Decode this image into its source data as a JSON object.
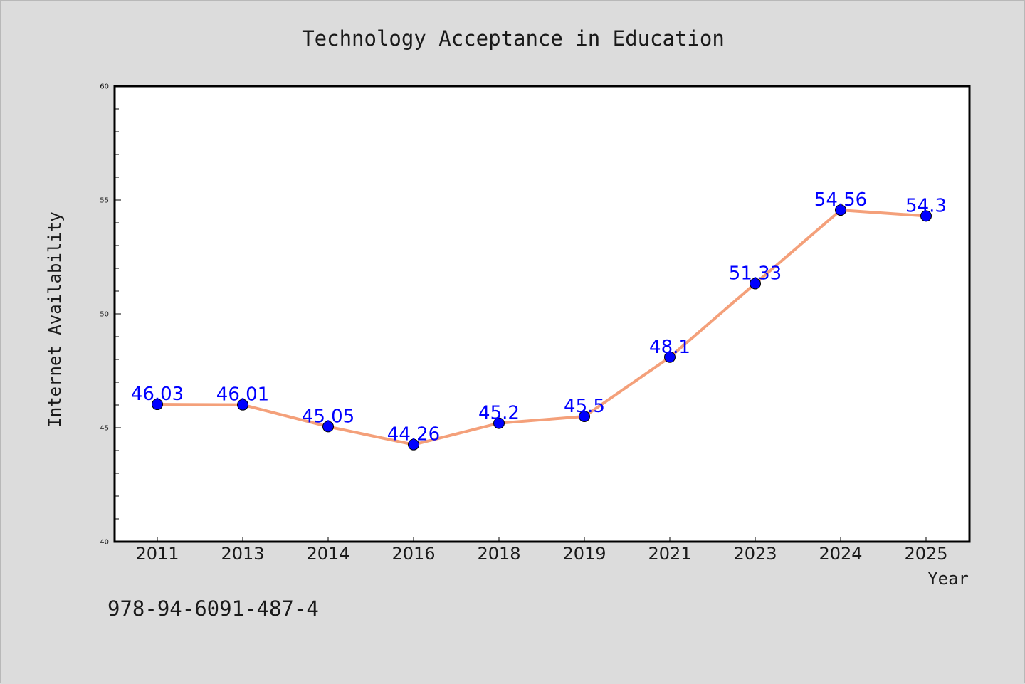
{
  "chart_data": {
    "type": "line",
    "title": "Technology Acceptance in Education",
    "xlabel": "Year",
    "ylabel": "Internet Availability",
    "categories": [
      "2011",
      "2013",
      "2014",
      "2016",
      "2018",
      "2019",
      "2021",
      "2023",
      "2024",
      "2025"
    ],
    "series": [
      {
        "values": [
          46.03,
          46.01,
          45.05,
          44.26,
          45.2,
          45.5,
          48.1,
          51.33,
          54.56,
          54.3
        ],
        "data_labels": [
          "46.03",
          "46.01",
          "45.05",
          "44.26",
          "45.2",
          "45.5",
          "48.1",
          "51.33",
          "54.56",
          "54.3"
        ],
        "line_color": "#f4a07a",
        "marker_color": "#0000ff"
      }
    ],
    "ylim": [
      40,
      60
    ],
    "yticks": [
      40,
      45,
      50,
      55,
      60
    ],
    "ytick_labels": [
      "40",
      "45",
      "50",
      "55",
      "60"
    ],
    "grid": false,
    "legend": "none"
  },
  "footer_text": "978-94-6091-487-4",
  "colors": {
    "background": "#dcdcdc",
    "plot_background": "#ffffff",
    "line": "#f4a07a",
    "marker": "#0000ff",
    "data_label": "#0000ff"
  }
}
